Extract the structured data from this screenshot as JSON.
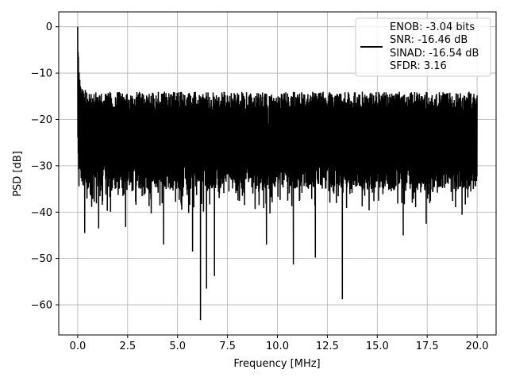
{
  "chart_data": {
    "type": "line",
    "xlabel": "Frequency [MHz]",
    "ylabel": "PSD [dB]",
    "xlim": [
      -0.95,
      20.95
    ],
    "ylim": [
      -66.5,
      3.2
    ],
    "x_ticks": [
      0.0,
      2.5,
      5.0,
      7.5,
      10.0,
      12.5,
      15.0,
      17.5,
      20.0
    ],
    "x_tick_labels": [
      "0.0",
      "2.5",
      "5.0",
      "7.5",
      "10.0",
      "12.5",
      "15.0",
      "17.5",
      "20.0"
    ],
    "y_ticks": [
      0,
      -10,
      -20,
      -30,
      -40,
      -50,
      -60
    ],
    "y_tick_labels": [
      "0",
      "−10",
      "−20",
      "−30",
      "−40",
      "−50",
      "−60"
    ],
    "grid": true,
    "legend": {
      "placement": "upper right",
      "entries": [
        "ENOB: -3.04 bits",
        "SNR: -16.46 dB",
        "SINAD: -16.54 dB",
        "SFDR: 3.16"
      ]
    },
    "line_color": "#000000",
    "series": [
      {
        "x": [
          0.0,
          0.05,
          0.1,
          0.15,
          0.2,
          0.5,
          1.0,
          1.5,
          2.0,
          2.5,
          3.0,
          3.5,
          4.0,
          4.5,
          5.0,
          5.5,
          6.0,
          6.5,
          7.0,
          7.5,
          8.0,
          8.5,
          9.0,
          9.5,
          10.0,
          10.5,
          11.0,
          11.5,
          12.0,
          12.5,
          13.0,
          13.5,
          14.0,
          14.5,
          15.0,
          15.5,
          16.0,
          16.5,
          17.0,
          17.5,
          18.0,
          18.5,
          19.0,
          19.5,
          20.0
        ],
        "y_upper": [
          0,
          -8,
          -10,
          -12,
          -13,
          -14,
          -14,
          -14,
          -14,
          -14,
          -14,
          -14,
          -14,
          -14,
          -14,
          -14,
          -14,
          -14,
          -14,
          -14,
          -14,
          -14,
          -14,
          -14,
          -14,
          -14,
          -14,
          -14,
          -14,
          -14,
          -14,
          -14,
          -14,
          -14,
          -14,
          -14,
          -14,
          -14,
          -14,
          -14,
          -14,
          -14,
          -14,
          -14,
          -14
        ],
        "y_lower": [
          -26,
          -36,
          -35,
          -34,
          -34,
          -35,
          -35,
          -35,
          -35,
          -35,
          -35,
          -35,
          -35,
          -35,
          -35,
          -35,
          -35,
          -35,
          -35,
          -35,
          -35,
          -35,
          -35,
          -35,
          -35,
          -35,
          -35,
          -35,
          -35,
          -35,
          -35,
          -35,
          -35,
          -35,
          -35,
          -35,
          -35,
          -35,
          -35,
          -35,
          -35,
          -35,
          -35,
          -35,
          -35
        ]
      }
    ],
    "notable_dips": [
      {
        "x": 0.35,
        "y": -44.5
      },
      {
        "x": 1.05,
        "y": -43.5
      },
      {
        "x": 2.4,
        "y": -43.2
      },
      {
        "x": 4.3,
        "y": -47.0
      },
      {
        "x": 5.75,
        "y": -48.5
      },
      {
        "x": 6.15,
        "y": -63.3
      },
      {
        "x": 6.45,
        "y": -56.5
      },
      {
        "x": 6.85,
        "y": -53.8
      },
      {
        "x": 9.45,
        "y": -47.0
      },
      {
        "x": 10.8,
        "y": -51.3
      },
      {
        "x": 11.9,
        "y": -49.8
      },
      {
        "x": 13.25,
        "y": -58.8
      },
      {
        "x": 16.3,
        "y": -45.0
      },
      {
        "x": 17.45,
        "y": -42.5
      }
    ]
  }
}
